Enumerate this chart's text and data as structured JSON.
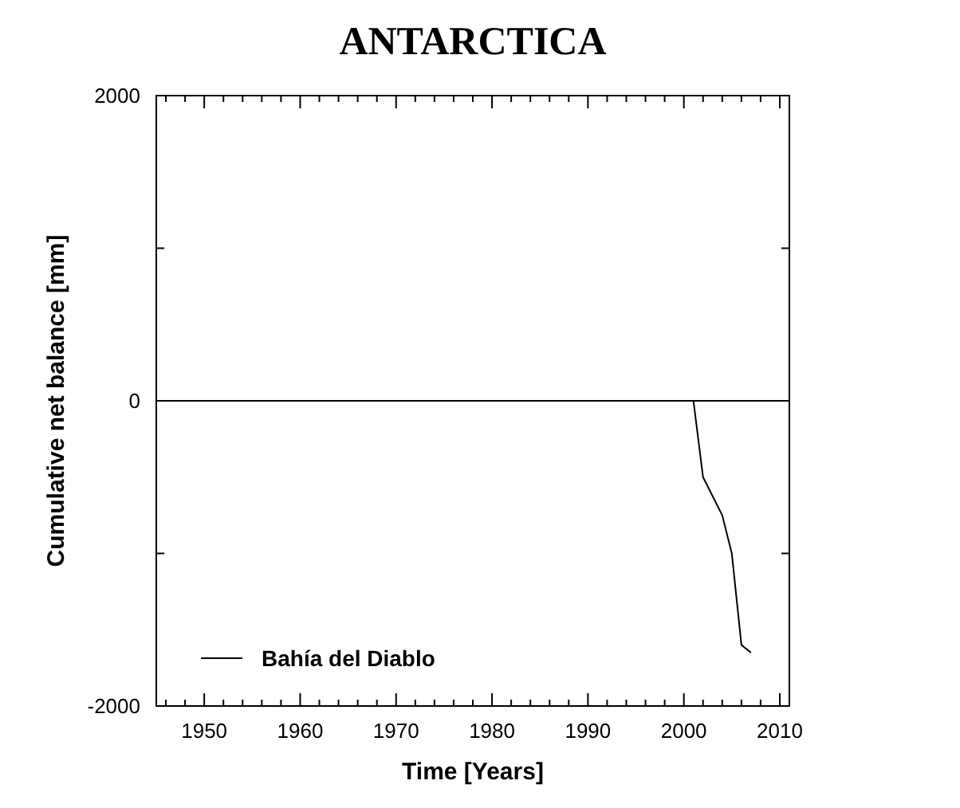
{
  "chart_data": {
    "type": "line",
    "title": "ANTARCTICA",
    "xlabel": "Time [Years]",
    "ylabel": "Cumulative net balance [mm]",
    "x": [
      2001,
      2002,
      2004,
      2005,
      2006,
      2007
    ],
    "series": [
      {
        "name": "Bahía del Diablo",
        "color": "#000000",
        "values": [
          0,
          -500,
          -750,
          -1000,
          -1600,
          -1650
        ]
      }
    ],
    "xlim": [
      1945,
      2011
    ],
    "xticks": [
      {
        "value": 1946,
        "label": null
      },
      {
        "value": 1948,
        "label": null
      },
      1950,
      {
        "value": 1952,
        "label": null
      },
      {
        "value": 1954,
        "label": null
      },
      {
        "value": 1956,
        "label": null
      },
      {
        "value": 1958,
        "label": null
      },
      1960,
      {
        "value": 1962,
        "label": null
      },
      {
        "value": 1964,
        "label": null
      },
      {
        "value": 1966,
        "label": null
      },
      {
        "value": 1968,
        "label": null
      },
      1970,
      {
        "value": 1972,
        "label": null
      },
      {
        "value": 1974,
        "label": null
      },
      {
        "value": 1976,
        "label": null
      },
      {
        "value": 1978,
        "label": null
      },
      1980,
      {
        "value": 1982,
        "label": null
      },
      {
        "value": 1984,
        "label": null
      },
      {
        "value": 1986,
        "label": null
      },
      {
        "value": 1988,
        "label": null
      },
      1990,
      {
        "value": 1992,
        "label": null
      },
      {
        "value": 1994,
        "label": null
      },
      {
        "value": 1996,
        "label": null
      },
      {
        "value": 1998,
        "label": null
      },
      2000,
      {
        "value": 2002,
        "label": null
      },
      {
        "value": 2004,
        "label": null
      },
      {
        "value": 2006,
        "label": null
      },
      {
        "value": 2008,
        "label": null
      },
      2010
    ],
    "ylim": [
      -2000,
      2000
    ],
    "yticks": [
      -2000,
      {
        "value": -1000,
        "label": null
      },
      0,
      {
        "value": 1000,
        "label": null
      },
      2000
    ],
    "ref_lines": [
      {
        "axis": "y",
        "value": 0,
        "color": "#000000"
      }
    ],
    "legend": "bottom left",
    "grid": false,
    "marker": "none",
    "line_style": "solid"
  }
}
